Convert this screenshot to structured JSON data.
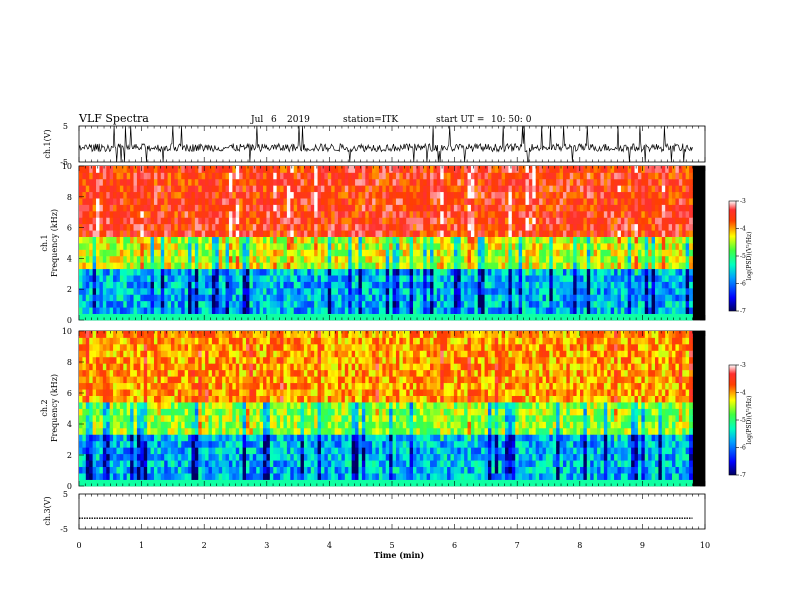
{
  "header": {
    "title": "VLF Spectra",
    "month": "Jul",
    "day": "6",
    "year": "2019",
    "station": "station=ITK",
    "start_ut_label": "start UT =",
    "start_ut_value": "10: 50: 0"
  },
  "colors": {
    "spectrogram_scale": [
      "#000080",
      "#0000ff",
      "#00a0ff",
      "#00ffff",
      "#40ff40",
      "#c0ff00",
      "#ffff00",
      "#ff8000",
      "#ff2000",
      "#ffffff"
    ],
    "trace": "#000000"
  },
  "chart_data": [
    {
      "type": "line",
      "panel": "ch1-waveform",
      "ylabel": "ch.1(V)",
      "ylim": [
        -5,
        5
      ],
      "yticks": [
        "5",
        "-5"
      ],
      "xlim": [
        0,
        10
      ],
      "series": [
        {
          "note": "noisy waveform around about -1 V with bursts reaching -5 and +5",
          "baseline": -1
        }
      ]
    },
    {
      "type": "heatmap",
      "panel": "ch1-spectrogram",
      "ylabel_line1": "ch.1",
      "ylabel_line2": "Frequency (kHz)",
      "ylim": [
        0,
        10
      ],
      "yticks": [
        "0",
        "2",
        "4",
        "6",
        "8",
        "10"
      ],
      "xlim": [
        0,
        9.8
      ],
      "colorbar": {
        "label": "log(PSD)(V²/Hz)",
        "range": [
          -7,
          -3
        ],
        "ticks": [
          "-3",
          "-4",
          "-5",
          "-6",
          "-7"
        ]
      }
    },
    {
      "type": "heatmap",
      "panel": "ch2-spectrogram",
      "ylabel_line1": "ch.2",
      "ylabel_line2": "Frequency (kHz)",
      "ylim": [
        0,
        10
      ],
      "yticks": [
        "0",
        "2",
        "4",
        "6",
        "8",
        "10"
      ],
      "xlim": [
        0,
        9.8
      ],
      "colorbar": {
        "label": "log(PSD)(V²/Hz)",
        "range": [
          -7,
          -3
        ],
        "ticks": [
          "-3",
          "-4",
          "-5",
          "-6",
          "-7"
        ]
      }
    },
    {
      "type": "line",
      "panel": "ch3-waveform",
      "ylabel": "ch.3(V)",
      "ylim": [
        -5,
        5
      ],
      "yticks": [
        "5",
        "-5"
      ],
      "xlim": [
        0,
        10
      ],
      "series": [
        {
          "note": "flat trace",
          "x": [
            0,
            9.8
          ],
          "y": [
            -1.9,
            -1.9
          ]
        }
      ]
    }
  ],
  "xaxis": {
    "label": "Time (min)",
    "ticks": [
      "0",
      "1",
      "2",
      "3",
      "4",
      "5",
      "6",
      "7",
      "8",
      "9",
      "10"
    ]
  }
}
